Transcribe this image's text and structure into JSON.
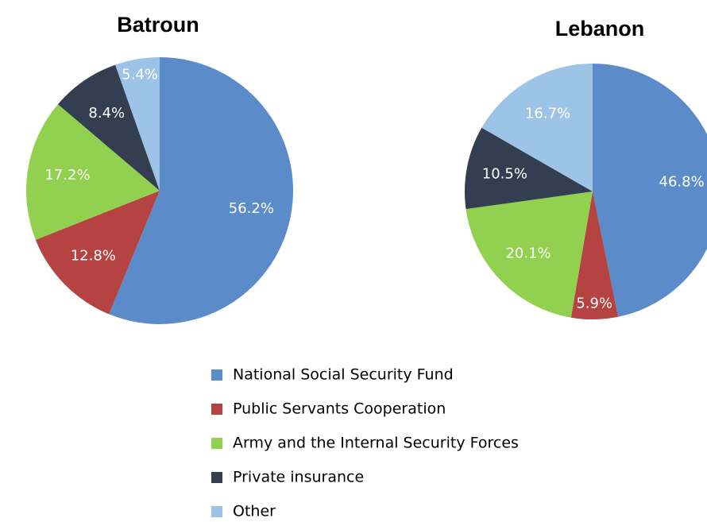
{
  "chart_data": [
    {
      "type": "pie",
      "title": "Batroun",
      "values": [
        56.2,
        12.8,
        17.2,
        8.4,
        5.4
      ],
      "value_labels": [
        "56.2%",
        "12.8%",
        "17.2%",
        "8.4%",
        "5.4%"
      ]
    },
    {
      "type": "pie",
      "title": "Lebanon",
      "values": [
        46.8,
        5.9,
        20.1,
        10.5,
        16.7
      ],
      "value_labels": [
        "46.8%",
        "5.9%",
        "20.1%",
        "10.5%",
        "16.7%"
      ]
    }
  ],
  "legend": {
    "categories": [
      "National Social Security Fund",
      "Public Servants Cooperation",
      "Army and the Internal Security Forces",
      "Private insurance",
      "Other"
    ],
    "colors": [
      "#5b8cc9",
      "#b54342",
      "#92d050",
      "#333e50",
      "#9dc3e6"
    ]
  }
}
